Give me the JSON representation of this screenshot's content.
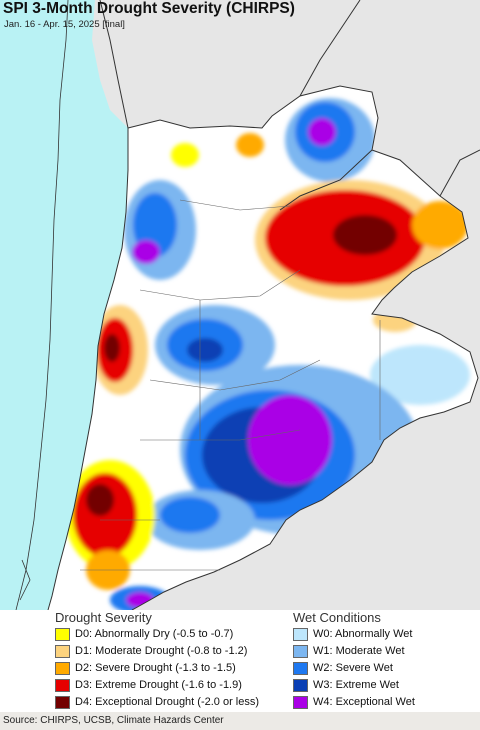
{
  "header": {
    "title": "SPI 3-Month Drought Severity (CHIRPS)",
    "subtitle": "Jan. 16 - Apr. 15, 2025 [final]"
  },
  "legend": {
    "drought_heading": "Drought Severity",
    "wet_heading": "Wet Conditions",
    "drought": [
      {
        "label": "D0: Abnormally Dry (-0.5 to -0.7)",
        "color": "#ffff00"
      },
      {
        "label": "D1: Moderate Drought (-0.8 to -1.2)",
        "color": "#fcd37f"
      },
      {
        "label": "D2: Severe Drought (-1.3 to -1.5)",
        "color": "#ffaa00"
      },
      {
        "label": "D3: Extreme Drought (-1.6 to -1.9)",
        "color": "#e60000"
      },
      {
        "label": "D4: Exceptional Drought (-2.0 or less)",
        "color": "#730000"
      }
    ],
    "wet": [
      {
        "label": "W0: Abnormally Wet",
        "color": "#bde6fc"
      },
      {
        "label": "W1: Moderate Wet",
        "color": "#7cb6f0"
      },
      {
        "label": "W2: Severe Wet",
        "color": "#1e78f0"
      },
      {
        "label": "W3: Extreme Wet",
        "color": "#0a3fb4"
      },
      {
        "label": "W4: Exceptional Wet",
        "color": "#aa00e6"
      }
    ]
  },
  "footer": {
    "source": "Source: CHIRPS, UCSB, Climate Hazards Center"
  },
  "map_colors": {
    "ocean": "#b9f2f4",
    "outside_land": "#e6e6e6",
    "border": "#333333"
  }
}
